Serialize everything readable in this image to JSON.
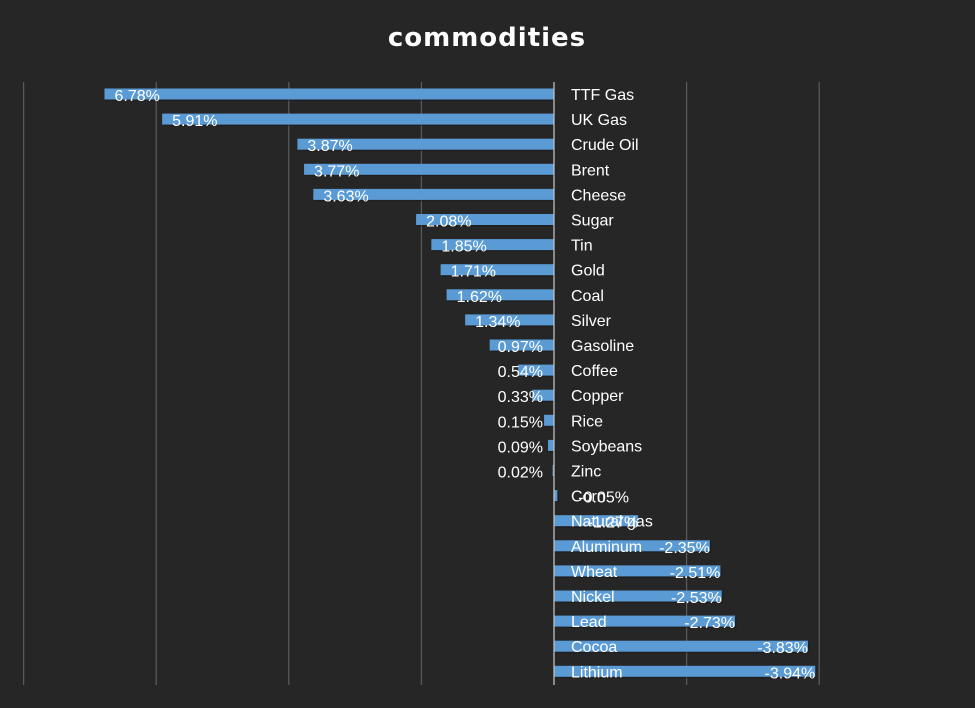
{
  "chart_data": {
    "type": "bar",
    "orientation": "horizontal",
    "title": "commodities",
    "xlabel": "",
    "ylabel": "",
    "xlim": [
      -0.04,
      0.08
    ],
    "grid": true,
    "legend": "none",
    "bar_color": "#5B9BD5",
    "background_color": "#262626",
    "text_color": "#FFFFFF",
    "categories": [
      "TTF Gas",
      "UK Gas",
      "Crude Oil",
      "Brent",
      "Cheese",
      "Sugar",
      "Tin",
      "Gold",
      "Coal",
      "Silver",
      "Gasoline",
      "Coffee",
      "Copper",
      "Rice",
      "Soybeans",
      "Zinc",
      "Corn",
      "Natural gas",
      "Aluminum",
      "Wheat",
      "Nickel",
      "Lead",
      "Cocoa",
      "Lithium"
    ],
    "values": [
      0.0678,
      0.0591,
      0.0387,
      0.0377,
      0.0363,
      0.0208,
      0.0185,
      0.0171,
      0.0162,
      0.0134,
      0.0097,
      0.0054,
      0.0033,
      0.0015,
      0.0009,
      0.0002,
      -0.0005,
      -0.0127,
      -0.0235,
      -0.0251,
      -0.0253,
      -0.0273,
      -0.0383,
      -0.0394
    ],
    "value_labels": [
      "6.78%",
      "5.91%",
      "3.87%",
      "3.77%",
      "3.63%",
      "2.08%",
      "1.85%",
      "1.71%",
      "1.62%",
      "1.34%",
      "0.97%",
      "0.54%",
      "0.33%",
      "0.15%",
      "0.09%",
      "0.02%",
      "-0.05%",
      "-1.27%",
      "-2.35%",
      "-2.51%",
      "-2.53%",
      "-2.73%",
      "-3.83%",
      "-3.94%"
    ]
  }
}
